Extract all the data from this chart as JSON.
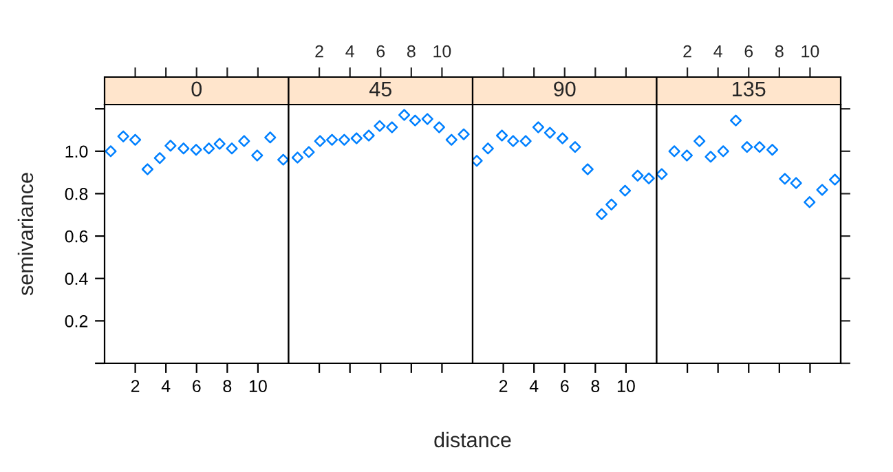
{
  "chart_data": [
    {
      "type": "scatter",
      "title": "0",
      "ylabel": "semivariance",
      "marker": "diamond",
      "grid": false,
      "tick_labels": "xy",
      "xlim": [
        0,
        12
      ],
      "xticks": [
        2,
        4,
        6,
        8,
        10
      ],
      "ylim": [
        0,
        1.22
      ],
      "yticks": [
        {
          "value": 0,
          "label": null
        },
        0.2,
        0.4,
        0.6,
        0.8,
        {
          "value": 1,
          "label": "1.0"
        },
        {
          "value": 1.2,
          "label": null
        }
      ],
      "series": [
        {
          "color": "#0080ff",
          "x": [
            0.4,
            1.22,
            2.0,
            2.8,
            3.6,
            4.3,
            5.15,
            5.97,
            6.8,
            7.5,
            8.3,
            9.1,
            9.95,
            10.8,
            11.65
          ],
          "values": [
            1.0,
            1.07,
            1.054,
            0.915,
            0.968,
            1.026,
            1.013,
            1.007,
            1.013,
            1.035,
            1.013,
            1.048,
            0.98,
            1.065,
            0.96
          ]
        }
      ]
    },
    {
      "type": "scatter",
      "title": "45",
      "xlabel": "distance",
      "marker": "diamond",
      "grid": false,
      "tick_labels": "x",
      "xlim": [
        0,
        12
      ],
      "xticks": [
        2,
        4,
        6,
        8,
        10
      ],
      "ylim": [
        0,
        1.22
      ],
      "series": [
        {
          "color": "#0080ff",
          "x": [
            0.58,
            1.32,
            2.05,
            2.83,
            3.63,
            4.43,
            5.23,
            5.94,
            6.74,
            7.54,
            8.25,
            9.05,
            9.82,
            10.62,
            11.42
          ],
          "values": [
            0.97,
            0.996,
            1.048,
            1.054,
            1.054,
            1.061,
            1.074,
            1.119,
            1.113,
            1.171,
            1.145,
            1.152,
            1.113,
            1.054,
            1.08
          ]
        }
      ]
    },
    {
      "type": "scatter",
      "title": "90",
      "marker": "diamond",
      "grid": false,
      "tick_labels": "x",
      "xlim": [
        0,
        12
      ],
      "xticks": [
        2,
        4,
        6,
        8,
        10
      ],
      "ylim": [
        0,
        1.22
      ],
      "series": [
        {
          "color": "#0080ff",
          "x": [
            0.27,
            1.0,
            1.91,
            2.64,
            3.46,
            4.28,
            5.04,
            5.86,
            6.68,
            7.5,
            8.41,
            9.05,
            9.94,
            10.76,
            11.49
          ],
          "values": [
            0.955,
            1.013,
            1.074,
            1.048,
            1.048,
            1.113,
            1.087,
            1.061,
            1.02,
            0.915,
            0.703,
            0.749,
            0.814,
            0.885,
            0.872
          ]
        }
      ]
    },
    {
      "type": "scatter",
      "title": "135",
      "marker": "diamond",
      "grid": false,
      "tick_labels": "x",
      "xlim": [
        0,
        12
      ],
      "xticks": [
        2,
        4,
        6,
        8,
        10
      ],
      "ylim": [
        0,
        1.22
      ],
      "series": [
        {
          "color": "#0080ff",
          "x": [
            0.33,
            1.15,
            1.97,
            2.79,
            3.52,
            4.34,
            5.16,
            5.89,
            6.71,
            7.54,
            8.36,
            9.09,
            9.97,
            10.79,
            11.62
          ],
          "values": [
            0.892,
            1.0,
            0.98,
            1.048,
            0.974,
            1.0,
            1.145,
            1.02,
            1.02,
            1.007,
            0.87,
            0.85,
            0.76,
            0.818,
            0.866
          ]
        }
      ]
    }
  ]
}
